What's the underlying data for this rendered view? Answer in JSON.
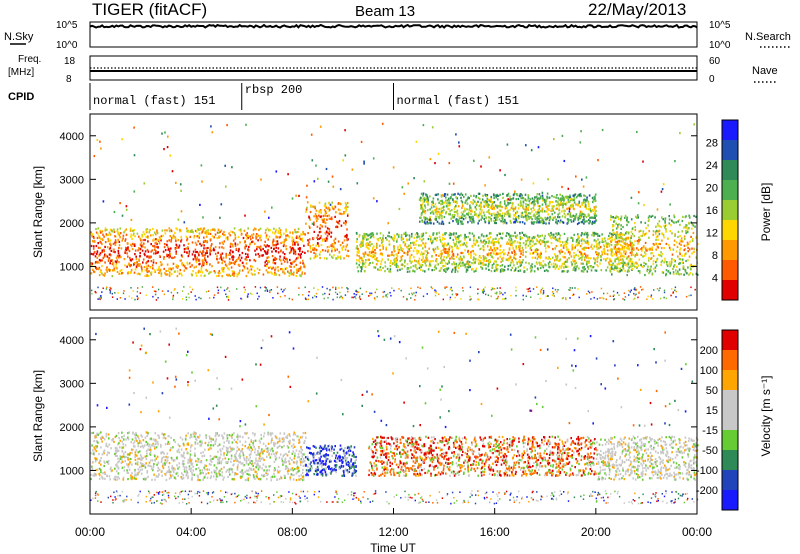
{
  "header": {
    "station": "TIGER (fitACF)",
    "beam": "Beam 13",
    "date": "22/May/2013"
  },
  "noise_panel": {
    "left_label": "N.Sky",
    "left_ticks": [
      "10^5",
      "10^0"
    ],
    "right_ticks": [
      "10^5",
      "10^0"
    ],
    "right_label": "N.Search"
  },
  "freq_panel": {
    "left_label_1": "Freq.",
    "left_label_2": "[MHz]",
    "left_ticks": [
      "18",
      "8"
    ],
    "right_ticks": [
      "60",
      "0"
    ],
    "right_label": "Nave"
  },
  "cpid_panel": {
    "label": "CPID",
    "segments": [
      {
        "label": "normal (fast) 151",
        "start_hour": 0,
        "end_hour": 6
      },
      {
        "label": "rbsp 200",
        "start_hour": 6,
        "end_hour": 12
      },
      {
        "label": "normal (fast) 151",
        "start_hour": 12,
        "end_hour": 24
      }
    ]
  },
  "colors": {
    "power_scale": [
      "#1a1aff",
      "#1f4fb0",
      "#2e8b57",
      "#4caf50",
      "#9acd32",
      "#ffd700",
      "#ff9900",
      "#ff5a00",
      "#e00000"
    ],
    "velocity_scale": [
      "#1a1aff",
      "#2244bb",
      "#2e8b57",
      "#66cc33",
      "#c8c8c8",
      "#c8c8c8",
      "#ffa500",
      "#ff6a00",
      "#e00000"
    ]
  },
  "chart_data": [
    {
      "type": "heatmap",
      "name": "power",
      "xlabel": "",
      "ylabel": "Slant Range [km]",
      "xlim": [
        0,
        24
      ],
      "ylim": [
        0,
        4500
      ],
      "yticks": [
        1000,
        2000,
        3000,
        4000
      ],
      "colorbar": {
        "label": "Power [dB]",
        "ticks": [
          "4",
          "8",
          "12",
          "16",
          "20",
          "24",
          "28"
        ],
        "range": [
          0,
          32
        ]
      },
      "bands": [
        {
          "start_hour": 0,
          "end_hour": 8.5,
          "range_lo": 800,
          "range_hi": 1900,
          "level": "high"
        },
        {
          "start_hour": 8.5,
          "end_hour": 10.2,
          "range_lo": 1200,
          "range_hi": 2500,
          "level": "high"
        },
        {
          "start_hour": 10.5,
          "end_hour": 21.5,
          "range_lo": 900,
          "range_hi": 1800,
          "level": "mixed"
        },
        {
          "start_hour": 13,
          "end_hour": 20,
          "range_lo": 2000,
          "range_hi": 2700,
          "level": "low"
        },
        {
          "start_hour": 20.5,
          "end_hour": 24,
          "range_lo": 800,
          "range_hi": 2200,
          "level": "mixed"
        }
      ]
    },
    {
      "type": "heatmap",
      "name": "velocity",
      "xlabel": "Time UT",
      "ylabel": "Slant Range [km]",
      "xlim": [
        0,
        24
      ],
      "ylim": [
        0,
        4500
      ],
      "xticks": [
        "00:00",
        "04:00",
        "08:00",
        "12:00",
        "16:00",
        "20:00",
        "00:00"
      ],
      "yticks": [
        1000,
        2000,
        3000,
        4000
      ],
      "colorbar": {
        "label": "Velocity [m s⁻¹]",
        "ticks": [
          "200",
          "100",
          "50",
          "15",
          "-15",
          "-50",
          "-100",
          "-200"
        ],
        "range": [
          -250,
          250
        ]
      },
      "bands": [
        {
          "start_hour": 0,
          "end_hour": 8.5,
          "range_lo": 800,
          "range_hi": 1900,
          "level": "grey"
        },
        {
          "start_hour": 8.5,
          "end_hour": 10.5,
          "range_lo": 900,
          "range_hi": 1600,
          "level": "blue"
        },
        {
          "start_hour": 11,
          "end_hour": 20,
          "range_lo": 900,
          "range_hi": 1800,
          "level": "red"
        },
        {
          "start_hour": 20,
          "end_hour": 24,
          "range_lo": 800,
          "range_hi": 1800,
          "level": "grey"
        }
      ]
    }
  ]
}
